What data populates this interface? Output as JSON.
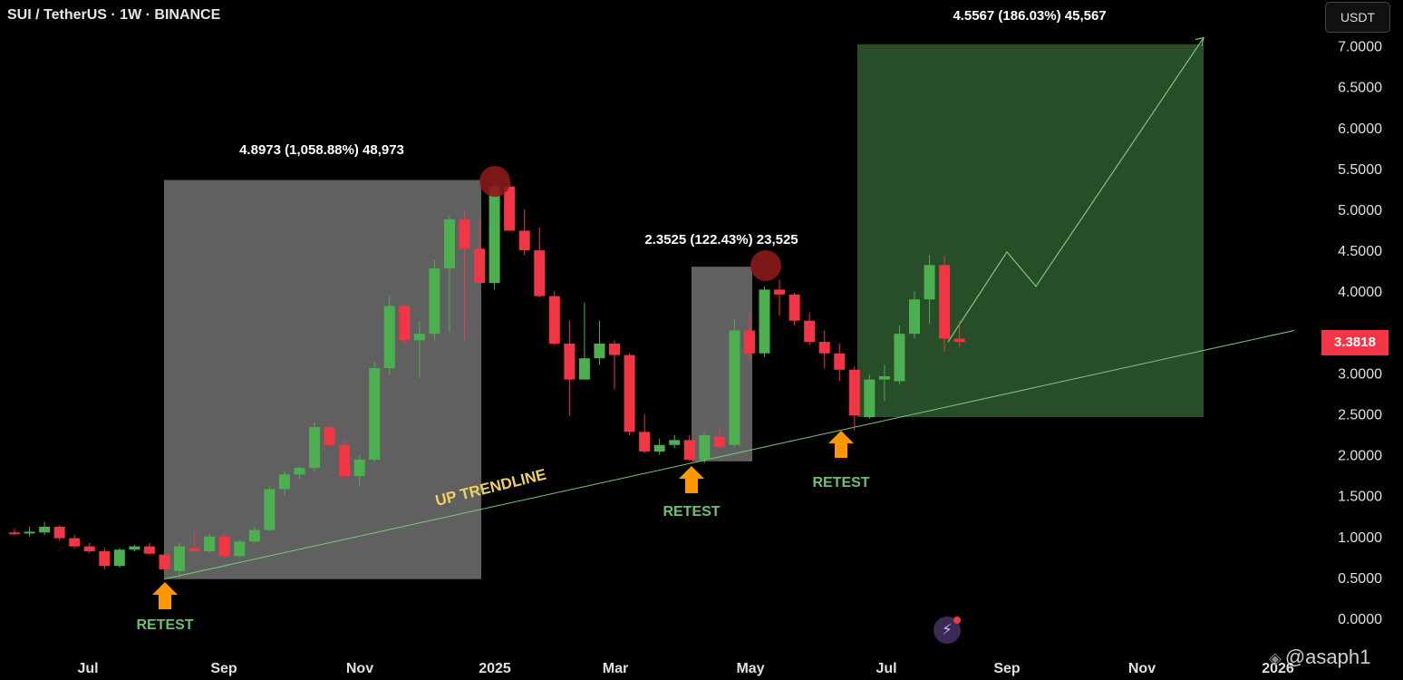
{
  "header": {
    "symbol_title": "SUI / TetherUS · 1W · BINANCE",
    "currency_button": "USDT"
  },
  "current_price": "3.3818",
  "watermark": "@asaph1",
  "icons": [
    "bolt-icon",
    "binance-logo-icon"
  ],
  "colors": {
    "up": "#4caf50",
    "down": "#f23645",
    "gray_box": "#808080",
    "green_box": "#2e5a30",
    "trendline": "#7dc97d",
    "retest_arrow": "#ff9800",
    "retest_text": "#6fbf73",
    "trendline_text": "#f0d060",
    "peak_circle": "#8b1a1a"
  },
  "chart_data": {
    "type": "candlestick",
    "symbol": "SUI / TetherUS",
    "interval": "1W",
    "exchange": "BINANCE",
    "y_axis": {
      "ticks": [
        "7.0000",
        "6.5000",
        "6.0000",
        "5.5000",
        "5.0000",
        "4.5000",
        "4.0000",
        "3.0000",
        "2.5000",
        "2.0000",
        "1.5000",
        "1.0000",
        "0.5000",
        "0.0000"
      ],
      "range": [
        0,
        7.2
      ]
    },
    "x_axis": {
      "ticks": [
        "Jul",
        "Sep",
        "Nov",
        "2025",
        "Mar",
        "May",
        "Jul",
        "Sep",
        "Nov",
        "2026"
      ]
    },
    "candles": [
      {
        "o": 1.05,
        "h": 1.1,
        "l": 1.02,
        "c": 1.04
      },
      {
        "o": 1.04,
        "h": 1.12,
        "l": 1.0,
        "c": 1.06
      },
      {
        "o": 1.05,
        "h": 1.18,
        "l": 1.02,
        "c": 1.12
      },
      {
        "o": 1.12,
        "h": 1.14,
        "l": 0.95,
        "c": 0.98
      },
      {
        "o": 0.98,
        "h": 1.02,
        "l": 0.86,
        "c": 0.88
      },
      {
        "o": 0.88,
        "h": 0.92,
        "l": 0.8,
        "c": 0.82
      },
      {
        "o": 0.82,
        "h": 0.86,
        "l": 0.6,
        "c": 0.64
      },
      {
        "o": 0.64,
        "h": 0.86,
        "l": 0.62,
        "c": 0.84
      },
      {
        "o": 0.84,
        "h": 0.9,
        "l": 0.82,
        "c": 0.88
      },
      {
        "o": 0.88,
        "h": 0.92,
        "l": 0.78,
        "c": 0.79
      },
      {
        "o": 0.78,
        "h": 0.8,
        "l": 0.56,
        "c": 0.6
      },
      {
        "o": 0.58,
        "h": 0.92,
        "l": 0.5,
        "c": 0.88
      },
      {
        "o": 0.86,
        "h": 1.1,
        "l": 0.82,
        "c": 0.82
      },
      {
        "o": 0.82,
        "h": 1.04,
        "l": 0.8,
        "c": 1.0
      },
      {
        "o": 1.0,
        "h": 1.04,
        "l": 0.74,
        "c": 0.76
      },
      {
        "o": 0.76,
        "h": 0.96,
        "l": 0.74,
        "c": 0.94
      },
      {
        "o": 0.94,
        "h": 1.12,
        "l": 0.92,
        "c": 1.08
      },
      {
        "o": 1.08,
        "h": 1.62,
        "l": 1.06,
        "c": 1.58
      },
      {
        "o": 1.58,
        "h": 1.8,
        "l": 1.5,
        "c": 1.76
      },
      {
        "o": 1.76,
        "h": 1.86,
        "l": 1.7,
        "c": 1.84
      },
      {
        "o": 1.84,
        "h": 2.4,
        "l": 1.8,
        "c": 2.34
      },
      {
        "o": 2.34,
        "h": 2.36,
        "l": 2.1,
        "c": 2.12
      },
      {
        "o": 2.12,
        "h": 2.2,
        "l": 1.72,
        "c": 1.74
      },
      {
        "o": 1.74,
        "h": 2.0,
        "l": 1.62,
        "c": 1.94
      },
      {
        "o": 1.94,
        "h": 3.14,
        "l": 1.92,
        "c": 3.06
      },
      {
        "o": 3.06,
        "h": 3.94,
        "l": 2.98,
        "c": 3.82
      },
      {
        "o": 3.82,
        "h": 3.84,
        "l": 3.36,
        "c": 3.4
      },
      {
        "o": 3.4,
        "h": 3.64,
        "l": 2.94,
        "c": 3.48
      },
      {
        "o": 3.48,
        "h": 4.38,
        "l": 3.4,
        "c": 4.28
      },
      {
        "o": 4.28,
        "h": 4.92,
        "l": 3.5,
        "c": 4.88
      },
      {
        "o": 4.88,
        "h": 4.98,
        "l": 3.4,
        "c": 4.52
      },
      {
        "o": 4.52,
        "h": 4.88,
        "l": 4.1,
        "c": 4.1
      },
      {
        "o": 4.1,
        "h": 5.36,
        "l": 4.02,
        "c": 5.28
      },
      {
        "o": 5.28,
        "h": 5.34,
        "l": 4.74,
        "c": 4.74
      },
      {
        "o": 4.74,
        "h": 5.0,
        "l": 4.44,
        "c": 4.5
      },
      {
        "o": 4.5,
        "h": 4.78,
        "l": 3.92,
        "c": 3.94
      },
      {
        "o": 3.94,
        "h": 4.0,
        "l": 3.34,
        "c": 3.36
      },
      {
        "o": 3.36,
        "h": 3.64,
        "l": 2.48,
        "c": 2.92
      },
      {
        "o": 2.92,
        "h": 3.86,
        "l": 2.94,
        "c": 3.18
      },
      {
        "o": 3.18,
        "h": 3.64,
        "l": 3.1,
        "c": 3.36
      },
      {
        "o": 3.36,
        "h": 3.4,
        "l": 2.8,
        "c": 3.22
      },
      {
        "o": 3.22,
        "h": 3.24,
        "l": 2.24,
        "c": 2.28
      },
      {
        "o": 2.28,
        "h": 2.5,
        "l": 2.02,
        "c": 2.04
      },
      {
        "o": 2.04,
        "h": 2.2,
        "l": 2.0,
        "c": 2.12
      },
      {
        "o": 2.12,
        "h": 2.24,
        "l": 2.08,
        "c": 2.18
      },
      {
        "o": 2.18,
        "h": 2.24,
        "l": 1.92,
        "c": 1.94
      },
      {
        "o": 1.94,
        "h": 2.28,
        "l": 1.9,
        "c": 2.24
      },
      {
        "o": 2.22,
        "h": 2.34,
        "l": 2.08,
        "c": 2.1
      },
      {
        "o": 2.12,
        "h": 3.66,
        "l": 2.1,
        "c": 3.52
      },
      {
        "o": 3.52,
        "h": 3.74,
        "l": 3.18,
        "c": 3.24
      },
      {
        "o": 3.24,
        "h": 4.06,
        "l": 3.2,
        "c": 4.02
      },
      {
        "o": 4.02,
        "h": 4.14,
        "l": 3.7,
        "c": 3.96
      },
      {
        "o": 3.96,
        "h": 3.98,
        "l": 3.58,
        "c": 3.64
      },
      {
        "o": 3.64,
        "h": 3.74,
        "l": 3.34,
        "c": 3.38
      },
      {
        "o": 3.38,
        "h": 3.52,
        "l": 3.06,
        "c": 3.24
      },
      {
        "o": 3.24,
        "h": 3.36,
        "l": 2.9,
        "c": 3.04
      },
      {
        "o": 3.04,
        "h": 3.08,
        "l": 2.3,
        "c": 2.48
      },
      {
        "o": 2.46,
        "h": 2.98,
        "l": 2.44,
        "c": 2.92
      },
      {
        "o": 2.92,
        "h": 3.1,
        "l": 2.66,
        "c": 2.96
      },
      {
        "o": 2.9,
        "h": 3.58,
        "l": 2.86,
        "c": 3.48
      },
      {
        "o": 3.48,
        "h": 4.0,
        "l": 3.42,
        "c": 3.9
      },
      {
        "o": 3.9,
        "h": 4.44,
        "l": 3.6,
        "c": 4.32
      },
      {
        "o": 4.32,
        "h": 4.44,
        "l": 3.26,
        "c": 3.42
      },
      {
        "o": 3.42,
        "h": 3.64,
        "l": 3.32,
        "c": 3.38
      }
    ],
    "annotations": {
      "measures": [
        {
          "label": "4.8973 (1,058.88%) 48,973",
          "from": 0.48,
          "to": 5.36,
          "color": "gray"
        },
        {
          "label": "2.3525 (122.43%) 23,525",
          "from": 1.92,
          "to": 4.3,
          "color": "gray"
        },
        {
          "label": "4.5567 (186.03%) 45,567",
          "from": 2.46,
          "to": 7.02,
          "color": "green"
        }
      ],
      "trendline_label": "UP TRENDLINE",
      "retest_labels": [
        "RETEST",
        "RETEST",
        "RETEST"
      ],
      "projection_path_prices": [
        3.38,
        4.48,
        4.06,
        7.1
      ]
    }
  }
}
